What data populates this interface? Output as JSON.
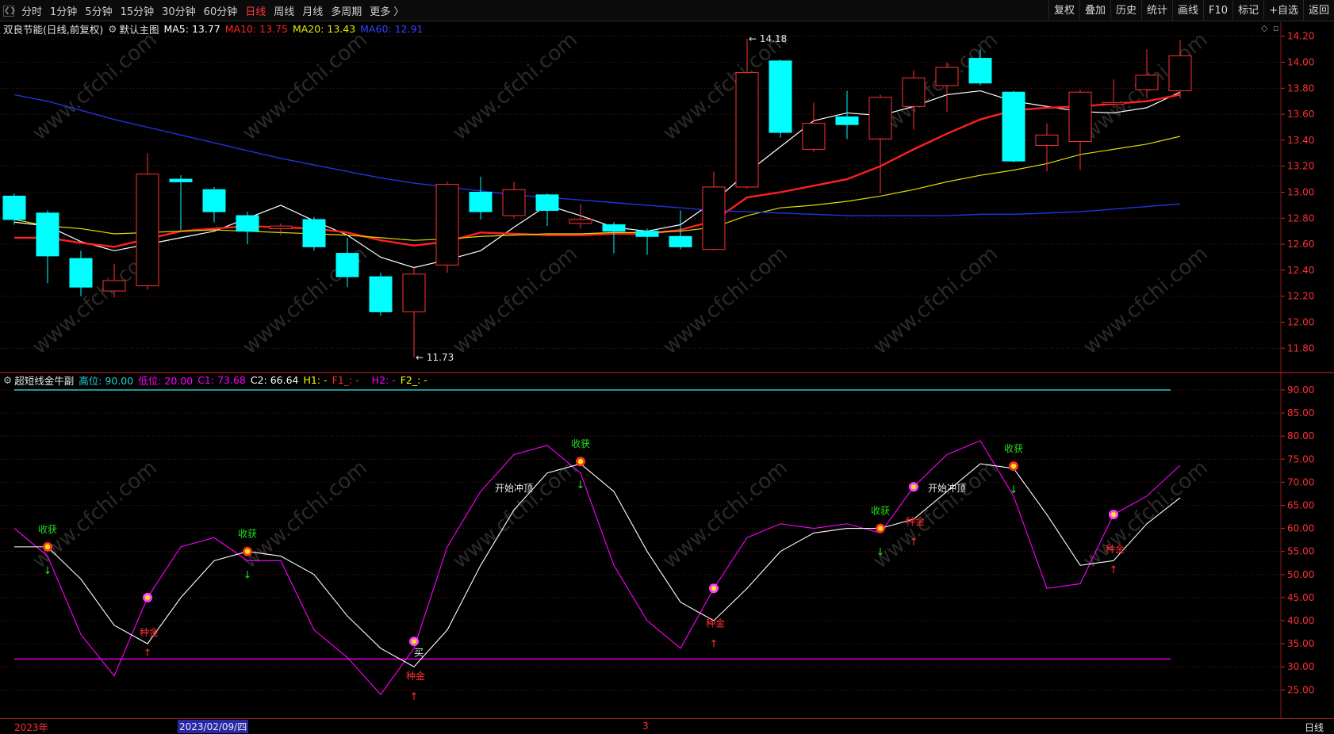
{
  "toolbar": {
    "periods": [
      {
        "label": "分时",
        "active": false
      },
      {
        "label": "1分钟",
        "active": false
      },
      {
        "label": "5分钟",
        "active": false
      },
      {
        "label": "15分钟",
        "active": false
      },
      {
        "label": "30分钟",
        "active": false
      },
      {
        "label": "60分钟",
        "active": false
      },
      {
        "label": "日线",
        "active": true
      },
      {
        "label": "周线",
        "active": false
      },
      {
        "label": "月线",
        "active": false
      },
      {
        "label": "多周期",
        "active": false
      },
      {
        "label": "更多 〉",
        "active": false
      }
    ],
    "tools": [
      "复权",
      "叠加",
      "历史",
      "统计",
      "画线",
      "F10",
      "标记",
      "+自选",
      "返回"
    ]
  },
  "main_info": {
    "stock": "双良节能(日线,前复权)",
    "template": "默认主图",
    "ma5": "MA5: 13.77",
    "ma10": "MA10: 13.75",
    "ma20": "MA20: 13.43",
    "ma60": "MA60: 12.91",
    "high_label": "14.18",
    "low_label": "11.73"
  },
  "sub_info": {
    "name": "超短线金牛副",
    "gw": "高位: 90.00",
    "dw": "低位: 20.00",
    "c1": "C1: 73.68",
    "c2": "C2: 66.64",
    "h1": "H1: -",
    "f1": "F1_: -",
    "h2": "H2: -",
    "f2": "F2_: -"
  },
  "bottom": {
    "year": "2023年",
    "date": "2023/02/09/四",
    "mark": "3",
    "period": "日线"
  },
  "colors": {
    "up": "#ff3232",
    "down": "#00ffff",
    "ma5": "#ffffff",
    "ma10": "#ff2020",
    "ma20": "#e0e000",
    "ma60": "#2233dd",
    "c1": "#ff00ff",
    "c2": "#ffffff",
    "grid": "#8b1a1a"
  },
  "chart_data": [
    {
      "type": "candlestick",
      "title": "双良节能(日线,前复权)",
      "y_ticks": [
        "14.20",
        "14.00",
        "13.80",
        "13.60",
        "13.40",
        "13.20",
        "13.00",
        "12.80",
        "12.60",
        "12.40",
        "12.20",
        "12.00",
        "11.80"
      ],
      "ylim": [
        11.7,
        14.24
      ],
      "candles": [
        {
          "o": 12.97,
          "c": 12.79,
          "h": 12.99,
          "l": 12.75
        },
        {
          "o": 12.84,
          "c": 12.51,
          "h": 12.86,
          "l": 12.3
        },
        {
          "o": 12.49,
          "c": 12.27,
          "h": 12.55,
          "l": 12.2
        },
        {
          "o": 12.24,
          "c": 12.32,
          "h": 12.45,
          "l": 12.19
        },
        {
          "o": 12.28,
          "c": 13.14,
          "h": 13.3,
          "l": 12.25
        },
        {
          "o": 13.1,
          "c": 13.08,
          "h": 13.13,
          "l": 12.71
        },
        {
          "o": 13.02,
          "c": 12.85,
          "h": 13.04,
          "l": 12.77
        },
        {
          "o": 12.82,
          "c": 12.7,
          "h": 12.85,
          "l": 12.6
        },
        {
          "o": 12.72,
          "c": 12.74,
          "h": 12.76,
          "l": 12.67
        },
        {
          "o": 12.79,
          "c": 12.58,
          "h": 12.81,
          "l": 12.55
        },
        {
          "o": 12.53,
          "c": 12.35,
          "h": 12.65,
          "l": 12.27
        },
        {
          "o": 12.35,
          "c": 12.08,
          "h": 12.38,
          "l": 12.05
        },
        {
          "o": 12.08,
          "c": 12.37,
          "h": 12.43,
          "l": 11.73
        },
        {
          "o": 12.44,
          "c": 13.06,
          "h": 13.08,
          "l": 12.38
        },
        {
          "o": 13.0,
          "c": 12.85,
          "h": 13.12,
          "l": 12.79
        },
        {
          "o": 12.82,
          "c": 13.02,
          "h": 13.08,
          "l": 12.8
        },
        {
          "o": 12.98,
          "c": 12.86,
          "h": 12.99,
          "l": 12.74
        },
        {
          "o": 12.76,
          "c": 12.79,
          "h": 12.91,
          "l": 12.72
        },
        {
          "o": 12.75,
          "c": 12.7,
          "h": 12.77,
          "l": 12.53
        },
        {
          "o": 12.7,
          "c": 12.66,
          "h": 12.72,
          "l": 12.52
        },
        {
          "o": 12.66,
          "c": 12.58,
          "h": 12.86,
          "l": 12.56
        },
        {
          "o": 12.56,
          "c": 13.04,
          "h": 13.16,
          "l": 12.55
        },
        {
          "o": 13.04,
          "c": 13.92,
          "h": 14.18,
          "l": 13.03
        },
        {
          "o": 14.01,
          "c": 13.46,
          "h": 14.02,
          "l": 13.42
        },
        {
          "o": 13.33,
          "c": 13.53,
          "h": 13.69,
          "l": 13.31
        },
        {
          "o": 13.58,
          "c": 13.52,
          "h": 13.78,
          "l": 13.41
        },
        {
          "o": 13.41,
          "c": 13.73,
          "h": 13.75,
          "l": 12.99
        },
        {
          "o": 13.66,
          "c": 13.88,
          "h": 13.94,
          "l": 13.48
        },
        {
          "o": 13.82,
          "c": 13.96,
          "h": 14.0,
          "l": 13.62
        },
        {
          "o": 14.03,
          "c": 13.84,
          "h": 14.1,
          "l": 13.82
        },
        {
          "o": 13.77,
          "c": 13.24,
          "h": 13.78,
          "l": 13.23
        },
        {
          "o": 13.36,
          "c": 13.44,
          "h": 13.53,
          "l": 13.16
        },
        {
          "o": 13.39,
          "c": 13.77,
          "h": 13.79,
          "l": 13.17
        },
        {
          "o": 13.68,
          "c": 13.69,
          "h": 13.87,
          "l": 13.65
        },
        {
          "o": 13.79,
          "c": 13.9,
          "h": 14.1,
          "l": 13.72
        },
        {
          "o": 13.78,
          "c": 14.05,
          "h": 14.17,
          "l": 13.72
        }
      ],
      "series": [
        {
          "name": "MA5",
          "values": [
            12.77,
            12.74,
            12.62,
            12.55,
            12.6,
            12.65,
            12.7,
            12.8,
            12.9,
            12.78,
            12.67,
            12.5,
            12.42,
            12.48,
            12.55,
            12.73,
            12.9,
            12.82,
            12.73,
            12.7,
            12.75,
            12.93,
            13.15,
            13.35,
            13.55,
            13.61,
            13.59,
            13.66,
            13.75,
            13.78,
            13.7,
            13.66,
            13.62,
            13.61,
            13.65,
            13.77
          ]
        },
        {
          "name": "MA10",
          "values": [
            12.65,
            12.65,
            12.61,
            12.58,
            12.64,
            12.7,
            12.72,
            12.74,
            12.73,
            12.72,
            12.69,
            12.63,
            12.59,
            12.62,
            12.69,
            12.68,
            12.67,
            12.67,
            12.68,
            12.68,
            12.71,
            12.78,
            12.96,
            13.0,
            13.05,
            13.1,
            13.2,
            13.33,
            13.45,
            13.56,
            13.63,
            13.65,
            13.66,
            13.68,
            13.7,
            13.75
          ]
        },
        {
          "name": "MA20",
          "values": [
            12.79,
            12.74,
            12.72,
            12.68,
            12.69,
            12.7,
            12.71,
            12.7,
            12.69,
            12.68,
            12.67,
            12.65,
            12.63,
            12.64,
            12.66,
            12.67,
            12.68,
            12.68,
            12.69,
            12.69,
            12.7,
            12.73,
            12.82,
            12.88,
            12.9,
            12.93,
            12.97,
            13.02,
            13.08,
            13.13,
            13.17,
            13.22,
            13.29,
            13.33,
            13.37,
            13.43
          ]
        },
        {
          "name": "MA60",
          "values": [
            13.75,
            13.7,
            13.63,
            13.56,
            13.5,
            13.44,
            13.38,
            13.32,
            13.26,
            13.21,
            13.16,
            13.11,
            13.07,
            13.04,
            13.01,
            12.98,
            12.96,
            12.94,
            12.92,
            12.9,
            12.88,
            12.86,
            12.85,
            12.84,
            12.83,
            12.82,
            12.82,
            12.82,
            12.82,
            12.83,
            12.83,
            12.84,
            12.85,
            12.87,
            12.89,
            12.91
          ]
        }
      ]
    },
    {
      "type": "line",
      "title": "超短线金牛副",
      "y_ticks": [
        "90.00",
        "85.00",
        "80.00",
        "75.00",
        "70.00",
        "65.00",
        "60.00",
        "55.00",
        "50.00",
        "45.00",
        "40.00",
        "35.00",
        "30.00",
        "25.00"
      ],
      "ylim": [
        21.5,
        91.8
      ],
      "levels": [
        {
          "name": "高位",
          "value": 90
        },
        {
          "name": "低位",
          "value": 20
        }
      ],
      "series": [
        {
          "name": "C1",
          "values": [
            60,
            54,
            37,
            28,
            45,
            56,
            58,
            53,
            53,
            38,
            32,
            24,
            34,
            56,
            68,
            76,
            78,
            72,
            52,
            40,
            34,
            47,
            58,
            61,
            60,
            61,
            59,
            69,
            76,
            79,
            67,
            47,
            48,
            63,
            67,
            73.68
          ]
        },
        {
          "name": "C2",
          "values": [
            56,
            56,
            49,
            39,
            35,
            45,
            53,
            55,
            54,
            50,
            41,
            34,
            30,
            38,
            52,
            64,
            72,
            74,
            68,
            55,
            44,
            40,
            47,
            55,
            59,
            60,
            60,
            62,
            68,
            74,
            73,
            63,
            52,
            53,
            61,
            66.64
          ]
        }
      ],
      "signals": [
        {
          "index": 1,
          "value": 56,
          "text": "收获"
        },
        {
          "index": 4,
          "value": 45,
          "text": "种金"
        },
        {
          "index": 7,
          "value": 55,
          "text": "收获"
        },
        {
          "index": 12,
          "value": 35.5,
          "text": "种金"
        },
        {
          "index": 15,
          "value": 69,
          "text": "开始冲顶"
        },
        {
          "index": 17,
          "value": 74.5,
          "text": "收获"
        },
        {
          "index": 21,
          "value": 47,
          "text": "种金"
        },
        {
          "index": 26,
          "value": 60,
          "text": "收获"
        },
        {
          "index": 27,
          "value": 69,
          "text": "种金"
        },
        {
          "index": 28,
          "value": 69,
          "text": "开始冲顶"
        },
        {
          "index": 30,
          "value": 73.5,
          "text": "收获"
        },
        {
          "index": 33,
          "value": 63,
          "text": "种金"
        }
      ],
      "buy_label": "买"
    }
  ]
}
